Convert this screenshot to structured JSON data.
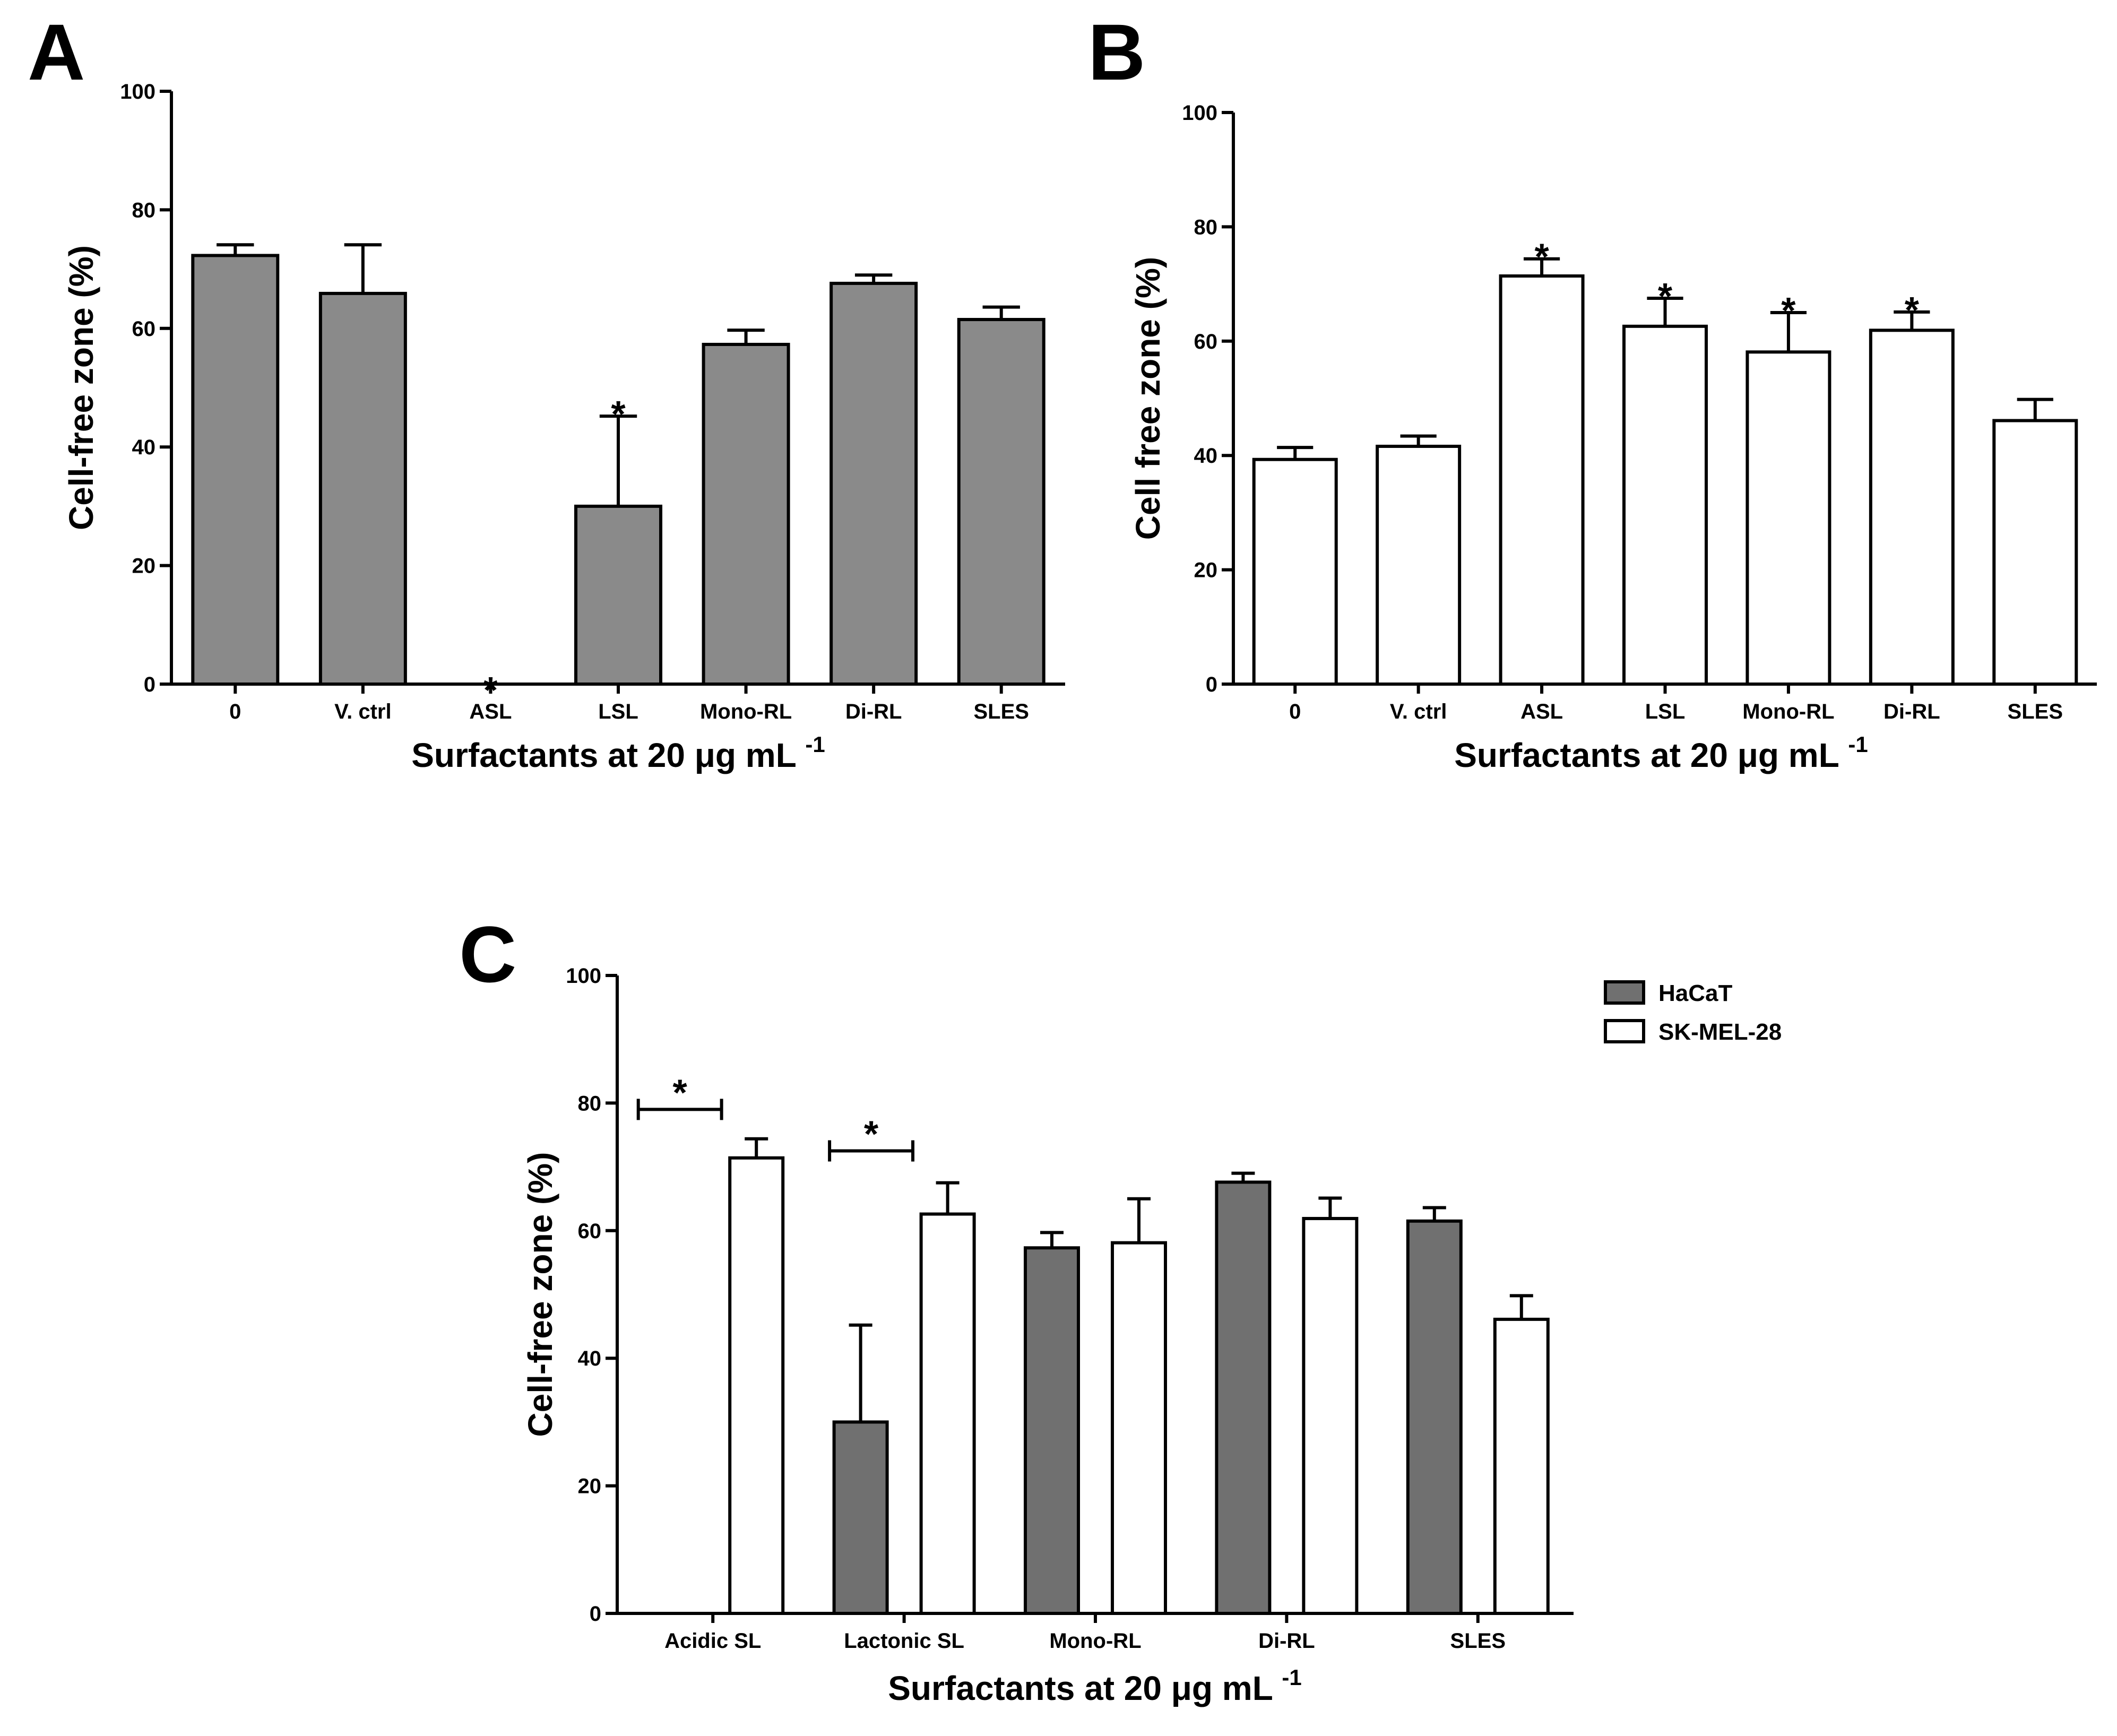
{
  "colors": {
    "hacat_fill": "#8a8a8a",
    "hacat_fill_c": "#707070",
    "skmel_fill": "#ffffff",
    "stroke": "#000000"
  },
  "chart_data": [
    {
      "panel": "A",
      "type": "bar",
      "ylabel": "Cell-free zone (%)",
      "xlabel": "Surfactants at 20 μg mL",
      "xlabel_sup": "-1",
      "ylim": [
        0,
        100
      ],
      "yticks": [
        0,
        20,
        40,
        60,
        80,
        100
      ],
      "categories": [
        "0",
        "V. ctrl",
        "ASL",
        "LSL",
        "Mono-RL",
        "Di-RL",
        "SLES"
      ],
      "values": [
        72.3,
        65.9,
        0,
        30,
        57.3,
        67.6,
        61.5
      ],
      "errors": [
        1.8,
        8.2,
        0,
        15.2,
        2.4,
        1.4,
        2.1
      ],
      "significance": [
        "",
        "",
        "*",
        "*",
        "",
        "",
        ""
      ]
    },
    {
      "panel": "B",
      "type": "bar",
      "ylabel": "Cell free zone (%)",
      "xlabel": "Surfactants at 20 μg mL",
      "xlabel_sup": "-1",
      "ylim": [
        0,
        100
      ],
      "yticks": [
        0,
        20,
        40,
        60,
        80,
        100
      ],
      "categories": [
        "0",
        "V. ctrl",
        "ASL",
        "LSL",
        "Mono-RL",
        "Di-RL",
        "SLES"
      ],
      "values": [
        39.3,
        41.6,
        71.4,
        62.6,
        58.1,
        61.9,
        46.1
      ],
      "errors": [
        2.1,
        1.8,
        3.0,
        4.9,
        6.9,
        3.2,
        3.7
      ],
      "significance": [
        "",
        "",
        "*",
        "*",
        "*",
        "*",
        ""
      ]
    },
    {
      "panel": "C",
      "type": "bar",
      "ylabel": "Cell-free zone (%)",
      "xlabel": "Surfactants at 20 μg mL",
      "xlabel_sup": "-1",
      "ylim": [
        0,
        100
      ],
      "yticks": [
        0,
        20,
        40,
        60,
        80,
        100
      ],
      "categories": [
        "Acidic SL",
        "Lactonic SL",
        "Mono-RL",
        "Di-RL",
        "SLES"
      ],
      "series": [
        {
          "name": "HaCaT",
          "values": [
            0,
            30,
            57.3,
            67.6,
            61.5
          ],
          "errors": [
            0,
            15.2,
            2.4,
            1.4,
            2.1
          ]
        },
        {
          "name": "SK-MEL-28",
          "values": [
            71.4,
            62.6,
            58.1,
            61.9,
            46.1
          ],
          "errors": [
            3.0,
            4.9,
            6.9,
            3.2,
            3.7
          ]
        }
      ],
      "brackets": [
        {
          "category": "Acidic SL",
          "label": "*",
          "y": 79
        },
        {
          "category": "Lactonic SL",
          "label": "*",
          "y": 72.5
        }
      ],
      "legend_position": "top-right"
    }
  ]
}
